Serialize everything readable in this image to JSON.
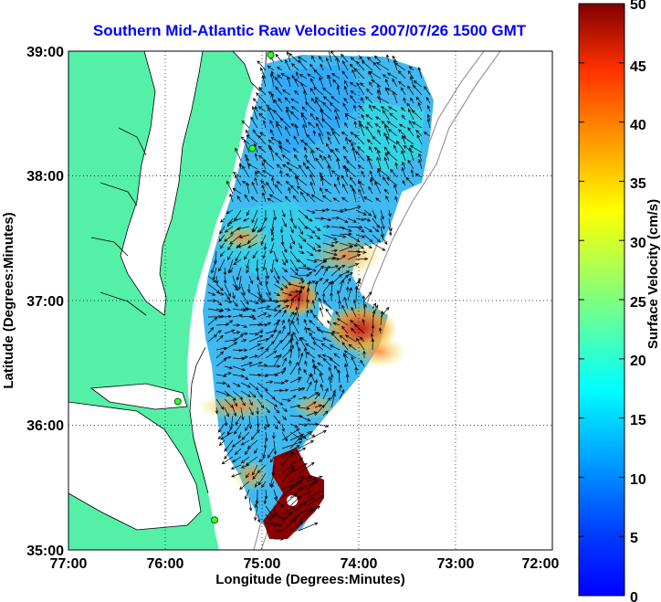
{
  "title": "Southern Mid-Atlantic Raw Velocities 2007/07/26 1500 GMT",
  "map": {
    "xlabel": "Longitude (Degrees:Minutes)",
    "ylabel": "Latitude (Degrees:Minutes)",
    "x_ticks": [
      "77:00",
      "76:00",
      "75:00",
      "74:00",
      "73:00",
      "72:00"
    ],
    "y_ticks": [
      "39:00",
      "38:00",
      "37:00",
      "36:00",
      "35:00"
    ],
    "lon_range": [
      -77,
      -72
    ],
    "lat_range": [
      35,
      39
    ],
    "land_color": "#55f0a8",
    "grid": "dotted",
    "station_markers": [
      {
        "lon": -74.91,
        "lat": 38.97
      },
      {
        "lon": -75.1,
        "lat": 38.22
      },
      {
        "lon": -75.87,
        "lat": 36.19
      },
      {
        "lon": -75.49,
        "lat": 35.24
      }
    ]
  },
  "colorbar": {
    "label": "Surface Velocity (cm/s)",
    "ticks": [
      "0",
      "5",
      "10",
      "15",
      "20",
      "25",
      "30",
      "35",
      "40",
      "45",
      "50"
    ],
    "min": 0,
    "max": 50,
    "colormap": "jet"
  }
}
